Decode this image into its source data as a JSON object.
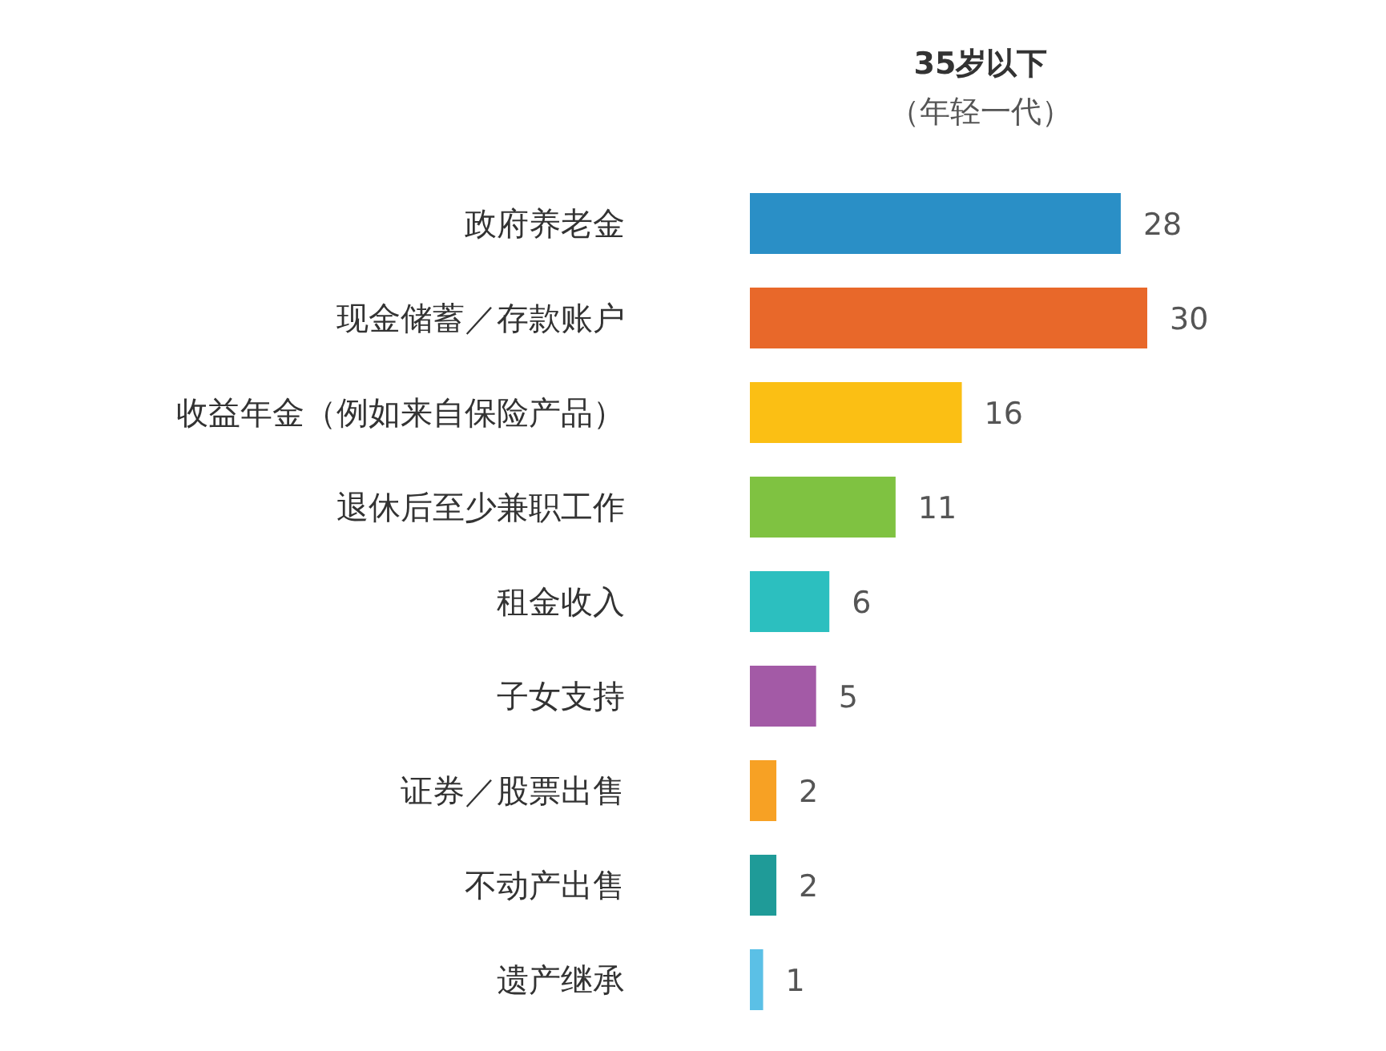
{
  "chart_data": {
    "type": "bar",
    "orientation": "horizontal",
    "title": "35岁以下",
    "subtitle": "（年轻一代）",
    "categories": [
      "政府养老金",
      "现金储蓄／存款账户",
      "收益年金（例如来自保险产品）",
      "退休后至少兼职工作",
      "租金收入",
      "子女支持",
      "证券／股票出售",
      "不动产出售",
      "遗产继承"
    ],
    "values": [
      28,
      30,
      16,
      11,
      6,
      5,
      2,
      2,
      1
    ],
    "colors": [
      "#2a8fc6",
      "#e8682a",
      "#fbbf14",
      "#7fc241",
      "#2cbfbf",
      "#a35aa6",
      "#f7a124",
      "#1f9b98",
      "#5bc0e6"
    ],
    "data_labels": true
  }
}
